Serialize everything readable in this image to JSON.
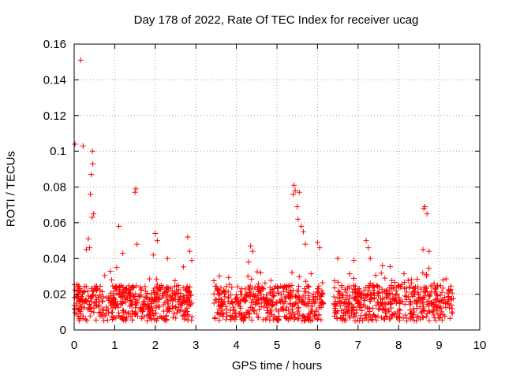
{
  "chart_data": {
    "type": "scatter",
    "title": "Day 178 of 2022, Rate Of TEC Index for receiver ucag",
    "xlabel": "GPS time / hours",
    "ylabel": "ROTI / TECUs",
    "xlim": [
      0,
      10
    ],
    "ylim": [
      0,
      0.16
    ],
    "xticks": [
      "0",
      "1",
      "2",
      "3",
      "4",
      "5",
      "6",
      "7",
      "8",
      "9",
      "10"
    ],
    "yticks": [
      "0",
      "0.02",
      "0.04",
      "0.06",
      "0.08",
      "0.1",
      "0.12",
      "0.14",
      "0.16"
    ],
    "grid": true,
    "marker": "+",
    "color": "#ff0000",
    "gaps_hours": [
      [
        2.92,
        3.4
      ],
      [
        6.15,
        6.4
      ]
    ],
    "baseline_band": [
      0.005,
      0.025
    ],
    "series": [
      {
        "x": [
          0.02,
          0.05,
          0.08,
          0.1,
          0.12,
          0.15,
          0.18,
          0.2,
          0.22,
          0.25,
          0.3,
          0.35,
          0.38,
          0.42,
          0.45,
          0.5,
          0.55,
          0.6,
          0.7,
          0.8,
          0.9,
          1.0,
          1.05,
          1.1,
          1.15,
          1.2,
          1.25,
          1.3,
          1.4,
          1.5,
          1.55,
          1.6,
          1.7,
          1.8,
          1.85,
          1.9,
          1.95,
          2.0,
          2.1,
          2.2,
          2.25,
          2.3,
          2.4,
          2.5,
          2.6,
          2.7,
          2.75,
          2.8,
          2.85,
          2.9,
          3.45,
          3.5,
          3.6,
          3.7,
          3.8,
          3.9,
          4.0,
          4.1,
          4.2,
          4.3,
          4.35,
          4.4,
          4.5,
          4.6,
          4.65,
          4.7,
          4.8,
          4.9,
          5.0,
          5.1,
          5.2,
          5.3,
          5.35,
          5.4,
          5.45,
          5.5,
          5.55,
          5.6,
          5.7,
          5.8,
          5.9,
          6.0,
          6.05,
          6.1,
          6.45,
          6.5,
          6.6,
          6.7,
          6.8,
          6.9,
          7.0,
          7.1,
          7.2,
          7.25,
          7.3,
          7.4,
          7.5,
          7.6,
          7.7,
          7.8,
          7.9,
          8.0,
          8.1,
          8.2,
          8.3,
          8.4,
          8.5,
          8.6,
          8.65,
          8.7,
          8.8,
          8.9,
          9.0,
          9.1,
          9.2,
          9.3,
          0.02,
          0.16,
          0.22,
          0.3,
          0.35,
          0.4,
          0.42,
          0.45,
          0.48,
          0.44,
          0.46,
          0.38,
          1.05,
          1.1,
          1.2,
          1.5,
          1.52,
          1.55,
          1.95,
          2.0,
          2.05,
          2.3,
          2.8,
          2.85,
          2.9,
          4.3,
          4.35,
          4.4,
          4.6,
          5.4,
          5.42,
          5.45,
          5.5,
          5.52,
          5.55,
          5.6,
          5.65,
          5.7,
          6.0,
          6.05,
          6.5,
          6.9,
          7.2,
          7.25,
          7.3,
          7.6,
          8.6,
          8.62,
          8.65,
          8.7,
          8.75,
          9.1
        ],
        "y": [
          0.012,
          0.015,
          0.018,
          0.02,
          0.016,
          0.014,
          0.013,
          0.017,
          0.021,
          0.015,
          0.016,
          0.019,
          0.014,
          0.018,
          0.022,
          0.015,
          0.017,
          0.014,
          0.016,
          0.018,
          0.015,
          0.017,
          0.014,
          0.02,
          0.016,
          0.015,
          0.018,
          0.022,
          0.016,
          0.017,
          0.015,
          0.019,
          0.016,
          0.018,
          0.017,
          0.02,
          0.016,
          0.018,
          0.017,
          0.019,
          0.021,
          0.016,
          0.018,
          0.02,
          0.017,
          0.019,
          0.022,
          0.018,
          0.016,
          0.015,
          0.015,
          0.017,
          0.014,
          0.016,
          0.018,
          0.015,
          0.017,
          0.016,
          0.018,
          0.019,
          0.02,
          0.017,
          0.016,
          0.018,
          0.017,
          0.015,
          0.016,
          0.014,
          0.015,
          0.017,
          0.016,
          0.018,
          0.02,
          0.022,
          0.019,
          0.018,
          0.017,
          0.016,
          0.018,
          0.017,
          0.016,
          0.018,
          0.017,
          0.015,
          0.016,
          0.018,
          0.02,
          0.017,
          0.019,
          0.018,
          0.021,
          0.02,
          0.019,
          0.022,
          0.02,
          0.018,
          0.019,
          0.017,
          0.018,
          0.016,
          0.017,
          0.018,
          0.016,
          0.017,
          0.015,
          0.016,
          0.018,
          0.017,
          0.019,
          0.016,
          0.015,
          0.017,
          0.016,
          0.015,
          0.016,
          0.014,
          0.104,
          0.151,
          0.103,
          0.045,
          0.051,
          0.076,
          0.087,
          0.1,
          0.065,
          0.063,
          0.093,
          0.046,
          0.035,
          0.058,
          0.043,
          0.077,
          0.079,
          0.048,
          0.042,
          0.054,
          0.05,
          0.04,
          0.052,
          0.044,
          0.039,
          0.038,
          0.047,
          0.044,
          0.032,
          0.076,
          0.081,
          0.078,
          0.069,
          0.062,
          0.077,
          0.058,
          0.055,
          0.048,
          0.049,
          0.046,
          0.04,
          0.039,
          0.05,
          0.046,
          0.04,
          0.036,
          0.045,
          0.068,
          0.069,
          0.065,
          0.044,
          0.028
        ]
      }
    ]
  }
}
